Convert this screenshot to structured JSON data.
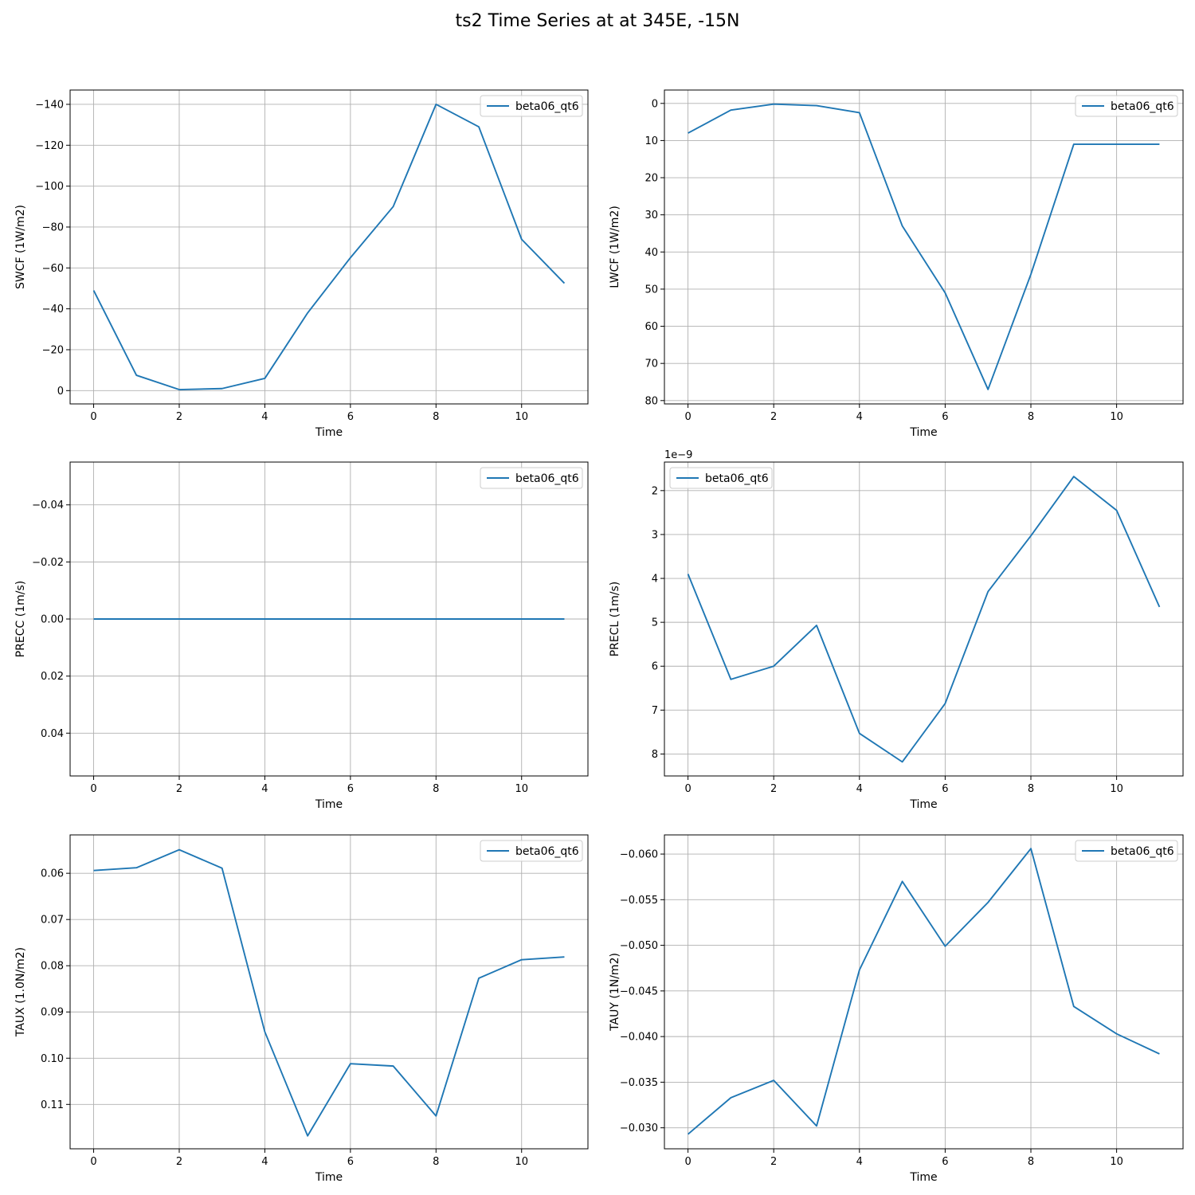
{
  "title": "ts2 Time Series at at 345E, -15N",
  "colors": {
    "line": "#1f77b4",
    "grid": "#b0b0b0",
    "axes": "#000000",
    "legend_border": "#cccccc"
  },
  "chart_data": [
    {
      "type": "line",
      "xlabel": "Time",
      "ylabel": "SWCF (1W/m2)",
      "x": [
        0,
        1,
        2,
        3,
        4,
        5,
        6,
        7,
        8,
        9,
        10,
        11
      ],
      "series": [
        {
          "name": "beta06_qt6",
          "values": [
            -49.0,
            -7.5,
            -0.5,
            -1.0,
            -6.0,
            -38.0,
            -65.0,
            -90.0,
            -140.0,
            -129.0,
            -74.0,
            -52.5
          ]
        }
      ],
      "xlim": [
        -0.55,
        11.55
      ],
      "ylim": [
        6.5,
        -147
      ],
      "y_inverted": true,
      "xticks": [
        0,
        2,
        4,
        6,
        8,
        10
      ],
      "xtick_labels": [
        "0",
        "2",
        "4",
        "6",
        "8",
        "10"
      ],
      "yticks": [
        -140,
        -120,
        -100,
        -80,
        -60,
        -40,
        -20,
        0
      ],
      "ytick_labels": [
        "−140",
        "−120",
        "−100",
        "−80",
        "−60",
        "−40",
        "−20",
        "0"
      ],
      "grid": true,
      "legend_position": "upper right",
      "offset_text": ""
    },
    {
      "type": "line",
      "xlabel": "Time",
      "ylabel": "LWCF (1W/m2)",
      "x": [
        0,
        1,
        2,
        3,
        4,
        5,
        6,
        7,
        8,
        9,
        10,
        11
      ],
      "series": [
        {
          "name": "beta06_qt6",
          "values": [
            8.0,
            1.8,
            0.2,
            0.6,
            2.5,
            33.0,
            51.0,
            77.0,
            46.0,
            11.0,
            11.0,
            11.0
          ]
        }
      ],
      "xlim": [
        -0.55,
        11.55
      ],
      "ylim": [
        80.9,
        -3.6
      ],
      "y_inverted": true,
      "xticks": [
        0,
        2,
        4,
        6,
        8,
        10
      ],
      "xtick_labels": [
        "0",
        "2",
        "4",
        "6",
        "8",
        "10"
      ],
      "yticks": [
        0,
        10,
        20,
        30,
        40,
        50,
        60,
        70,
        80
      ],
      "ytick_labels": [
        "0",
        "10",
        "20",
        "30",
        "40",
        "50",
        "60",
        "70",
        "80"
      ],
      "grid": true,
      "legend_position": "upper right",
      "offset_text": ""
    },
    {
      "type": "line",
      "xlabel": "Time",
      "ylabel": "PRECC (1m/s)",
      "x": [
        0,
        1,
        2,
        3,
        4,
        5,
        6,
        7,
        8,
        9,
        10,
        11
      ],
      "series": [
        {
          "name": "beta06_qt6",
          "values": [
            0,
            0,
            0,
            0,
            0,
            0,
            0,
            0,
            0,
            0,
            0,
            0
          ]
        }
      ],
      "xlim": [
        -0.55,
        11.55
      ],
      "ylim": [
        0.055,
        -0.055
      ],
      "y_inverted": true,
      "xticks": [
        0,
        2,
        4,
        6,
        8,
        10
      ],
      "xtick_labels": [
        "0",
        "2",
        "4",
        "6",
        "8",
        "10"
      ],
      "yticks": [
        -0.04,
        -0.02,
        0,
        0.02,
        0.04
      ],
      "ytick_labels": [
        "−0.04",
        "−0.02",
        "0.00",
        "0.02",
        "0.04"
      ],
      "grid": true,
      "legend_position": "upper right",
      "offset_text": ""
    },
    {
      "type": "line",
      "xlabel": "Time",
      "ylabel": "PRECL (1m/s)",
      "x": [
        0,
        1,
        2,
        3,
        4,
        5,
        6,
        7,
        8,
        9,
        10,
        11
      ],
      "series": [
        {
          "name": "beta06_qt6",
          "values": [
            3.9e-09,
            6.3e-09,
            6e-09,
            5.07e-09,
            7.53e-09,
            8.18e-09,
            6.85e-09,
            4.3e-09,
            3.03e-09,
            1.68e-09,
            2.45e-09,
            4.65e-09
          ]
        }
      ],
      "xlim": [
        -0.55,
        11.55
      ],
      "ylim": [
        8.5e-09,
        1.35e-09
      ],
      "y_inverted": true,
      "y_scale": 1e-09,
      "xticks": [
        0,
        2,
        4,
        6,
        8,
        10
      ],
      "xtick_labels": [
        "0",
        "2",
        "4",
        "6",
        "8",
        "10"
      ],
      "yticks": [
        2e-09,
        3e-09,
        4e-09,
        5e-09,
        6e-09,
        7e-09,
        8e-09
      ],
      "ytick_labels": [
        "2",
        "3",
        "4",
        "5",
        "6",
        "7",
        "8"
      ],
      "grid": true,
      "legend_position": "upper left",
      "offset_text": "1e−9"
    },
    {
      "type": "line",
      "xlabel": "Time",
      "ylabel": "TAUX (1.0N/m2)",
      "x": [
        0,
        1,
        2,
        3,
        4,
        5,
        6,
        7,
        8,
        9,
        10,
        11
      ],
      "series": [
        {
          "name": "beta06_qt6",
          "values": [
            0.0594,
            0.0588,
            0.0549,
            0.0589,
            0.0943,
            0.1168,
            0.1012,
            0.1017,
            0.1125,
            0.0827,
            0.0787,
            0.0781
          ]
        }
      ],
      "xlim": [
        -0.55,
        11.55
      ],
      "ylim": [
        0.1196,
        0.0517
      ],
      "y_inverted": true,
      "xticks": [
        0,
        2,
        4,
        6,
        8,
        10
      ],
      "xtick_labels": [
        "0",
        "2",
        "4",
        "6",
        "8",
        "10"
      ],
      "yticks": [
        0.06,
        0.07,
        0.08,
        0.09,
        0.1,
        0.11
      ],
      "ytick_labels": [
        "0.06",
        "0.07",
        "0.08",
        "0.09",
        "0.10",
        "0.11"
      ],
      "grid": true,
      "legend_position": "upper right",
      "offset_text": ""
    },
    {
      "type": "line",
      "xlabel": "Time",
      "ylabel": "TAUY (1N/m2)",
      "x": [
        0,
        1,
        2,
        3,
        4,
        5,
        6,
        7,
        8,
        9,
        10,
        11
      ],
      "series": [
        {
          "name": "beta06_qt6",
          "values": [
            -0.0293,
            -0.0333,
            -0.0352,
            -0.0302,
            -0.0473,
            -0.057,
            -0.0499,
            -0.0547,
            -0.0606,
            -0.0433,
            -0.0403,
            -0.0381
          ]
        }
      ],
      "xlim": [
        -0.55,
        11.55
      ],
      "ylim": [
        -0.0277,
        -0.0621
      ],
      "y_inverted": false,
      "xticks": [
        0,
        2,
        4,
        6,
        8,
        10
      ],
      "xtick_labels": [
        "0",
        "2",
        "4",
        "6",
        "8",
        "10"
      ],
      "yticks": [
        -0.06,
        -0.055,
        -0.05,
        -0.045,
        -0.04,
        -0.035,
        -0.03
      ],
      "ytick_labels": [
        "−0.060",
        "−0.055",
        "−0.050",
        "−0.045",
        "−0.040",
        "−0.035",
        "−0.030"
      ],
      "grid": true,
      "legend_position": "upper right",
      "offset_text": ""
    }
  ]
}
